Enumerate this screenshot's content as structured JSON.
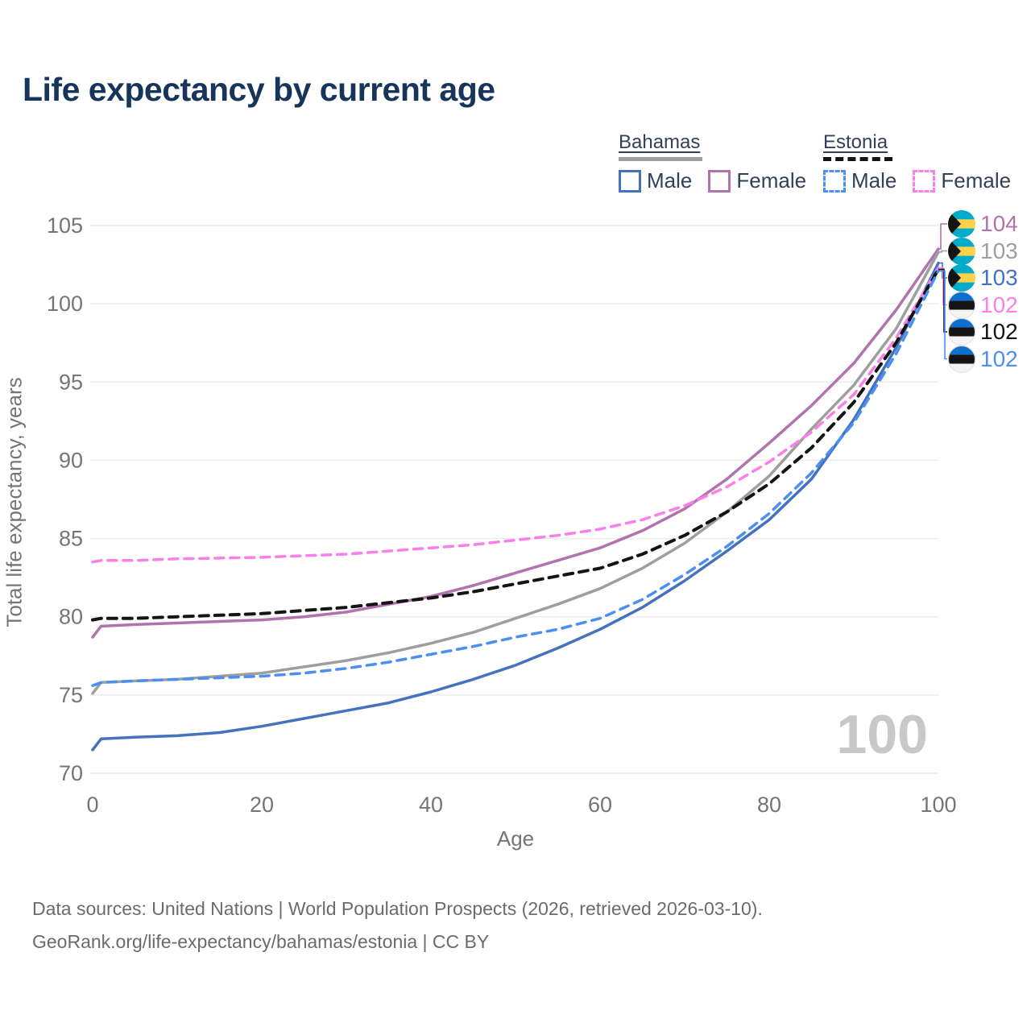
{
  "title": "Life expectancy by current age",
  "legend": {
    "groups": [
      {
        "label": "Bahamas",
        "line_style": "solid",
        "line_color": "#9e9e9e",
        "items": [
          {
            "label": "Male",
            "color": "#4472bd",
            "dash": false
          },
          {
            "label": "Female",
            "color": "#b173ae",
            "dash": false
          }
        ]
      },
      {
        "label": "Estonia",
        "line_style": "dashed",
        "line_color": "#141414",
        "items": [
          {
            "label": "Male",
            "color": "#4b8ff0",
            "dash": true
          },
          {
            "label": "Female",
            "color": "#fb7fe8",
            "dash": true
          }
        ]
      }
    ]
  },
  "chart_data": {
    "type": "line",
    "title": "Life expectancy by current age",
    "xlabel": "Age",
    "ylabel": "Total life expectancy, years",
    "xlim": [
      0,
      100
    ],
    "ylim": [
      70,
      105
    ],
    "xticks": [
      0,
      20,
      40,
      60,
      80,
      100
    ],
    "yticks": [
      70,
      75,
      80,
      85,
      90,
      95,
      100,
      105
    ],
    "grid": "horizontal",
    "legend_position": "top-right",
    "age_indicator": "100",
    "x": [
      0,
      1,
      5,
      10,
      15,
      20,
      25,
      30,
      35,
      40,
      45,
      50,
      55,
      60,
      65,
      70,
      75,
      80,
      85,
      90,
      95,
      100
    ],
    "series": [
      {
        "name": "Bahamas Female",
        "country": "Bahamas",
        "sex": "Female",
        "color": "#b173ae",
        "dash": false,
        "width": 3.5,
        "end_label": "104",
        "flag": "bahamas-flag",
        "values": [
          78.7,
          79.4,
          79.5,
          79.6,
          79.7,
          79.8,
          80.0,
          80.3,
          80.8,
          81.3,
          82.0,
          82.8,
          83.6,
          84.4,
          85.5,
          86.9,
          88.8,
          91.1,
          93.5,
          96.2,
          99.6,
          103.5
        ]
      },
      {
        "name": "Bahamas Both sexes",
        "country": "Bahamas",
        "sex": "Both",
        "color": "#9e9e9e",
        "dash": false,
        "width": 3.5,
        "end_label": "103",
        "flag": "bahamas-flag",
        "values": [
          75.1,
          75.8,
          75.9,
          76.0,
          76.2,
          76.4,
          76.8,
          77.2,
          77.7,
          78.3,
          79.0,
          79.9,
          80.8,
          81.8,
          83.1,
          84.7,
          86.7,
          89.0,
          92.0,
          94.8,
          98.4,
          103.3
        ]
      },
      {
        "name": "Bahamas Male",
        "country": "Bahamas",
        "sex": "Male",
        "color": "#4472bd",
        "dash": false,
        "width": 3.5,
        "end_label": "103",
        "flag": "bahamas-flag",
        "values": [
          71.5,
          72.2,
          72.3,
          72.4,
          72.6,
          73.0,
          73.5,
          74.0,
          74.5,
          75.2,
          76.0,
          76.9,
          78.0,
          79.2,
          80.6,
          82.3,
          84.2,
          86.2,
          88.8,
          92.6,
          97.2,
          102.6
        ]
      },
      {
        "name": "Estonia Female",
        "country": "Estonia",
        "sex": "Female",
        "color": "#fb7fe8",
        "dash": true,
        "width": 3.5,
        "end_label": "102",
        "flag": "estonia-flag",
        "values": [
          83.5,
          83.6,
          83.6,
          83.7,
          83.75,
          83.8,
          83.9,
          84.0,
          84.2,
          84.4,
          84.6,
          84.9,
          85.2,
          85.6,
          86.2,
          87.1,
          88.3,
          89.9,
          91.8,
          94.2,
          97.8,
          102.3
        ]
      },
      {
        "name": "Estonia Both sexes",
        "country": "Estonia",
        "sex": "Both",
        "color": "#141414",
        "dash": true,
        "width": 4,
        "end_label": "102",
        "flag": "estonia-flag",
        "values": [
          79.8,
          79.9,
          79.9,
          80.0,
          80.1,
          80.2,
          80.4,
          80.6,
          80.9,
          81.2,
          81.6,
          82.1,
          82.6,
          83.1,
          84.0,
          85.2,
          86.7,
          88.5,
          90.8,
          93.7,
          97.5,
          102.2
        ]
      },
      {
        "name": "Estonia Male",
        "country": "Estonia",
        "sex": "Male",
        "color": "#4b8ff0",
        "dash": true,
        "width": 3.5,
        "end_label": "102",
        "flag": "estonia-flag",
        "values": [
          75.6,
          75.8,
          75.9,
          76.0,
          76.1,
          76.2,
          76.4,
          76.7,
          77.1,
          77.6,
          78.1,
          78.7,
          79.2,
          79.9,
          81.1,
          82.7,
          84.5,
          86.6,
          89.2,
          92.4,
          96.8,
          102.1
        ]
      }
    ]
  },
  "flags": {
    "bahamas": {
      "aqua": "#00abc9",
      "gold": "#ffd24a",
      "black": "#141414"
    },
    "estonia": {
      "blue": "#0f6fce",
      "black": "#141414",
      "white": "#f4f4f4",
      "ring": "#e0e0e0"
    }
  },
  "colors": {
    "title": "#17355b",
    "axis_text": "#757575",
    "gridline": "#ececec",
    "watermark": "#c8c8c8",
    "footer": "#6b6b6b"
  },
  "watermark": "100",
  "footer": {
    "line1": "Data sources: United Nations | World Population Prospects (2026, retrieved 2026-03-10).",
    "line2": "GeoRank.org/life-expectancy/bahamas/estonia | CC BY"
  }
}
